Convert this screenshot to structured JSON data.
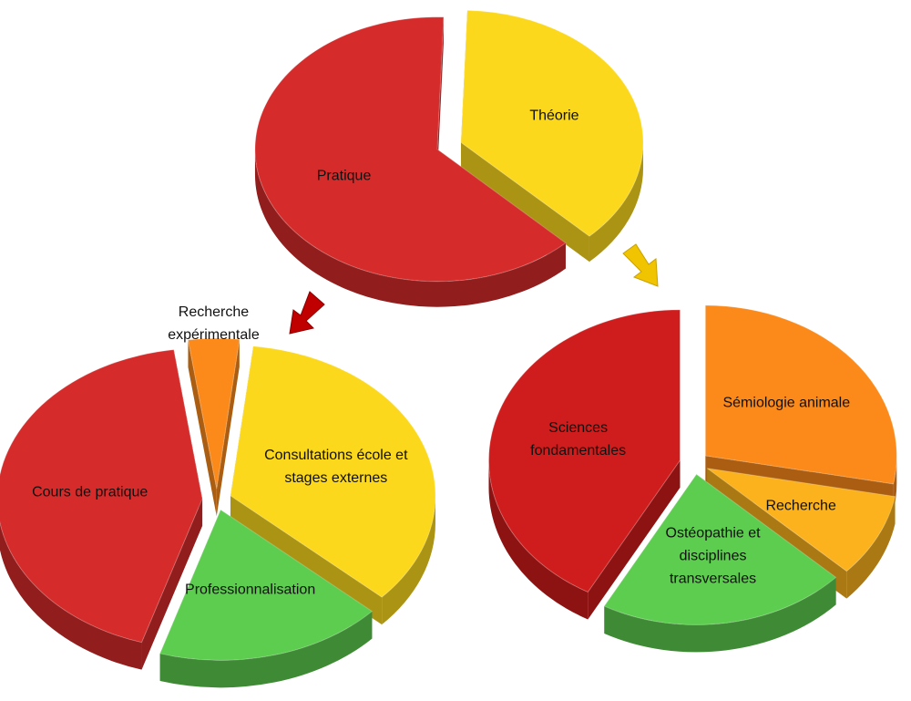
{
  "chart_data": [
    {
      "type": "pie",
      "categories": [
        "Théorie",
        "Pratique"
      ],
      "values": [
        37,
        63
      ],
      "colors": [
        "#fcd81c",
        "#d52b2b"
      ]
    },
    {
      "type": "pie",
      "categories": [
        "Recherche expérimentale",
        "Consultations école et stages externes",
        "Professionnalisation",
        "Cours de pratique"
      ],
      "values": [
        4,
        35,
        18,
        43
      ],
      "colors": [
        "#fb8a1a",
        "#fcd81c",
        "#5ccd4e",
        "#d52b2b"
      ]
    },
    {
      "type": "pie",
      "categories": [
        "Sémiologie animale",
        "Recherche",
        "Ostéopathie et disciplines transversales",
        "Sciences fondamentales"
      ],
      "values": [
        28,
        9,
        21,
        42
      ],
      "colors": [
        "#fb8a1a",
        "#fbb21c",
        "#5ccd4e",
        "#cf1c1c"
      ]
    }
  ]
}
